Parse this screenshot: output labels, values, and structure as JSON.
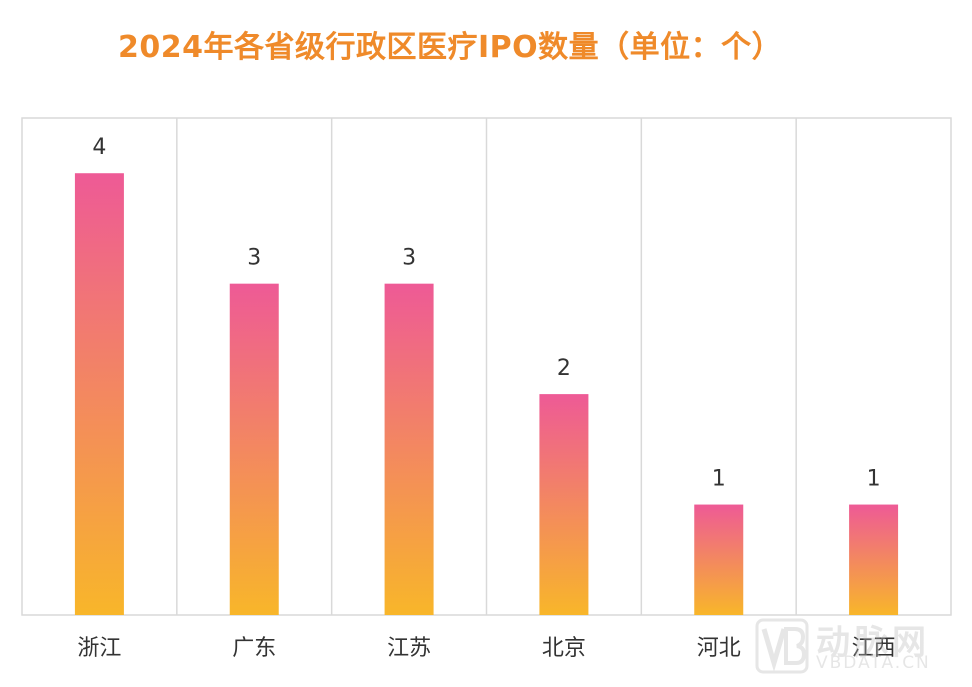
{
  "chart_data": {
    "type": "bar",
    "title": "2024年各省级行政区医疗IPO数量（单位：个）",
    "categories": [
      "浙江",
      "广东",
      "江苏",
      "北京",
      "河北",
      "江西"
    ],
    "values": [
      4,
      3,
      3,
      2,
      1,
      1
    ],
    "ylim": [
      0,
      4.5
    ],
    "grid": "vertical",
    "colors": {
      "bar_top": "#ee5a96",
      "bar_bottom": "#f8b62a",
      "title": "#ef8a2a",
      "grid": "#d9d9d9",
      "text": "#333333"
    }
  },
  "watermark": {
    "logo": "vb-logo-icon",
    "brand": "动脉网",
    "domain": "VBDATA.CN"
  }
}
